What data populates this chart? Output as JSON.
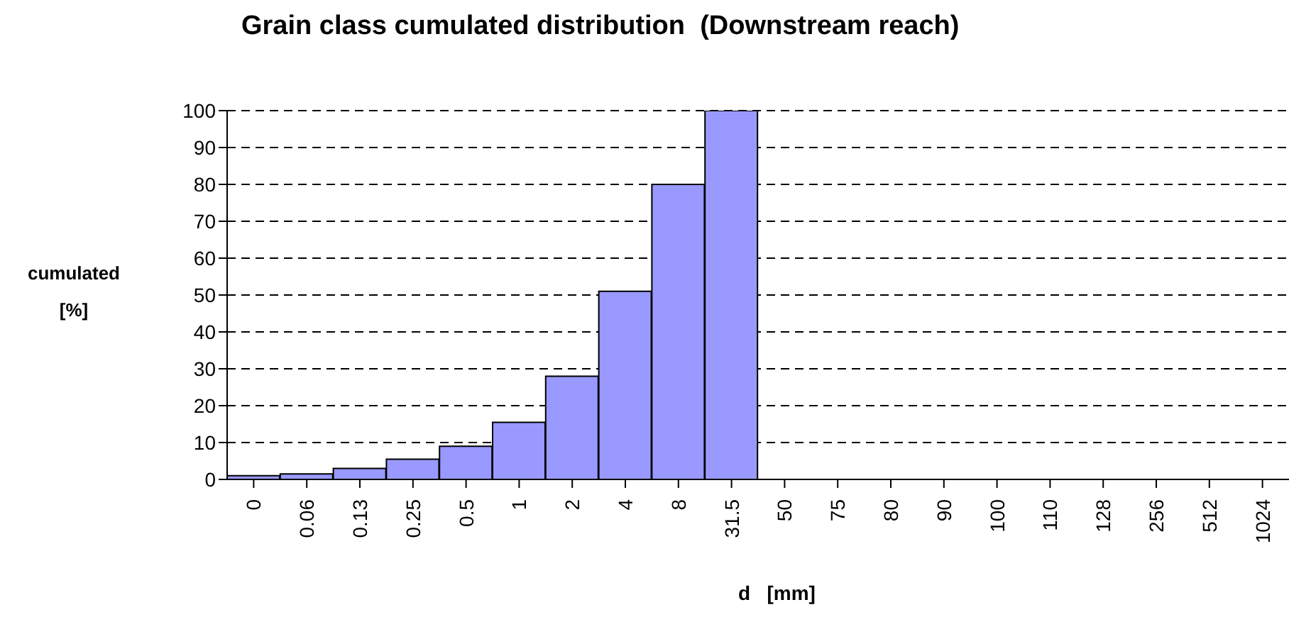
{
  "chart_data": {
    "type": "bar",
    "title": "Grain class cumulated distribution  (Downstream reach)",
    "xlabel": "d   [mm]",
    "ylabel": "cumulated [%]",
    "categories": [
      "0",
      "0.06",
      "0.13",
      "0.25",
      "0.5",
      "1",
      "2",
      "4",
      "8",
      "31.5",
      "50",
      "75",
      "80",
      "90",
      "100",
      "110",
      "128",
      "256",
      "512",
      "1024"
    ],
    "values": [
      1,
      1.5,
      3,
      5.5,
      9,
      15.5,
      28,
      51,
      80,
      100,
      0,
      0,
      0,
      0,
      0,
      0,
      0,
      0,
      0,
      0
    ],
    "color": "#9999ff",
    "ylim": [
      0,
      100
    ],
    "yticks": [
      0,
      10,
      20,
      30,
      40,
      50,
      60,
      70,
      80,
      90,
      100
    ],
    "grid": "y",
    "line_style": "dashed"
  }
}
